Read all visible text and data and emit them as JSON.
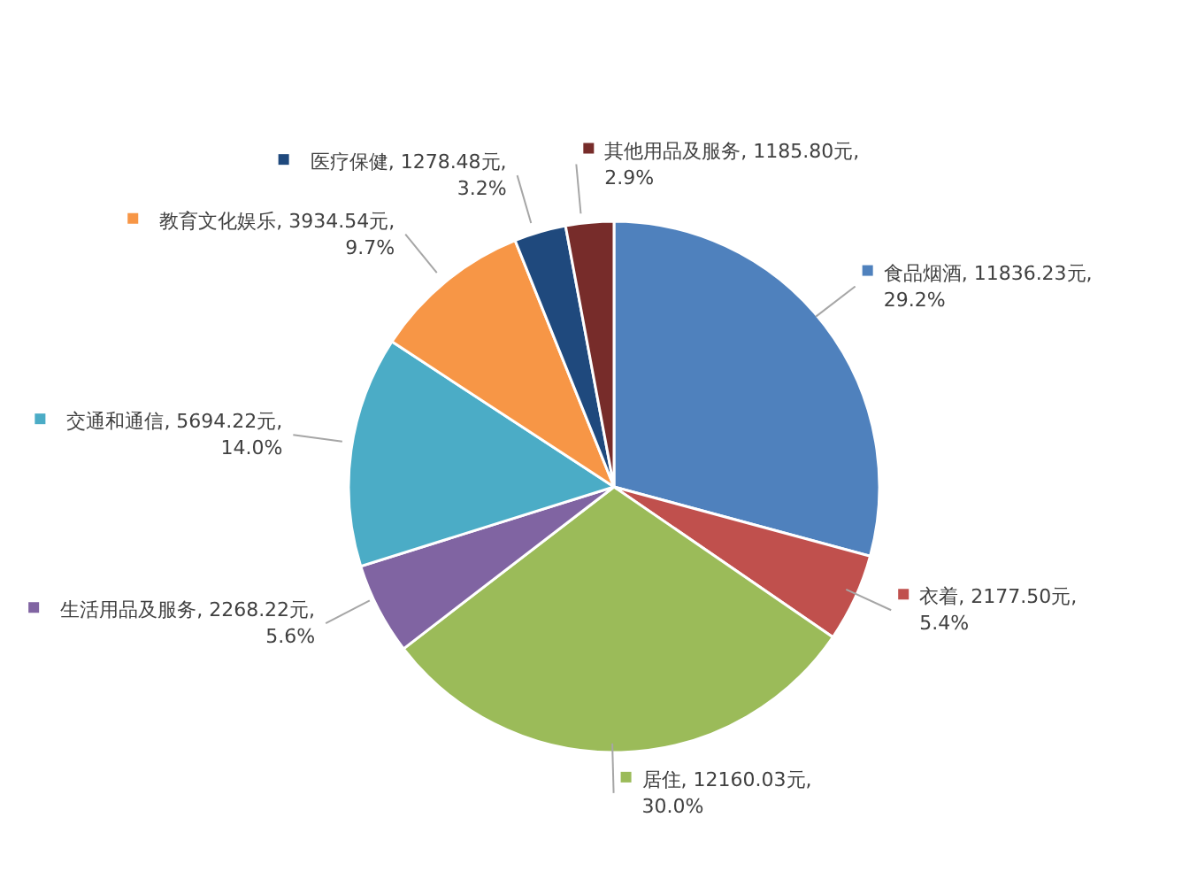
{
  "chart_data": {
    "type": "pie",
    "categories": [
      "食品烟酒",
      "衣着",
      "居住",
      "生活用品及服务",
      "交通和通信",
      "教育文化娱乐",
      "医疗保健",
      "其他用品及服务"
    ],
    "values": [
      11836.23,
      2177.5,
      12160.03,
      2268.22,
      5694.22,
      3934.54,
      1278.48,
      1185.8
    ],
    "value_labels": [
      "11836.23元, 29.2%",
      "2177.50元, 5.4%",
      "12160.03元, 30.0%",
      "2268.22元, 5.6%",
      "5694.22元, 14.0%",
      "3934.54元, 9.7%",
      "1278.48元, 3.2%",
      "1185.80元, 2.9%"
    ],
    "colors": [
      "#4f81bd",
      "#c0504d",
      "#9bbb59",
      "#8064a2",
      "#4bacc6",
      "#f79646",
      "#1f497d",
      "#772c2a"
    ],
    "legend": "top left"
  }
}
